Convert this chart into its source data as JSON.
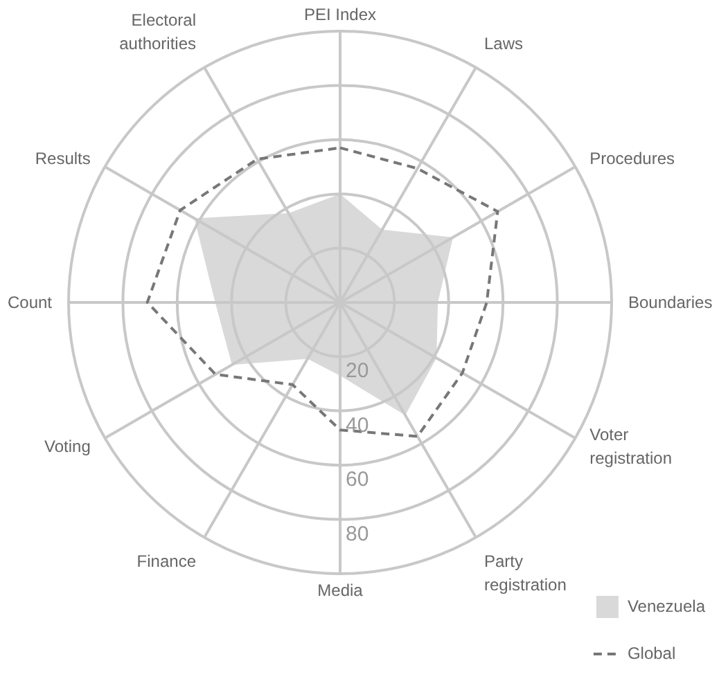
{
  "chart_data": {
    "type": "radar",
    "categories": [
      "PEI Index",
      "Laws",
      "Procedures",
      "Boundaries",
      "Voter\nregistration",
      "Party\nregistration",
      "Media",
      "Finance",
      "Voting",
      "Count",
      "Results",
      "Electoral\nauthorities"
    ],
    "series": [
      {
        "name": "Venezuela",
        "type": "area",
        "color": "#d9d9d9",
        "values": [
          40,
          31,
          48,
          36,
          41,
          48,
          27,
          24,
          46,
          46,
          62,
          38
        ]
      },
      {
        "name": "Global",
        "color": "#777777",
        "line_style": "dashed",
        "values": [
          57,
          57,
          67,
          54,
          52,
          57,
          47,
          35,
          53,
          71,
          68,
          61
        ]
      }
    ],
    "ylim": [
      0,
      100
    ],
    "yticks": [
      20,
      40,
      60,
      80
    ],
    "grid": true,
    "legend": "bottom right"
  }
}
